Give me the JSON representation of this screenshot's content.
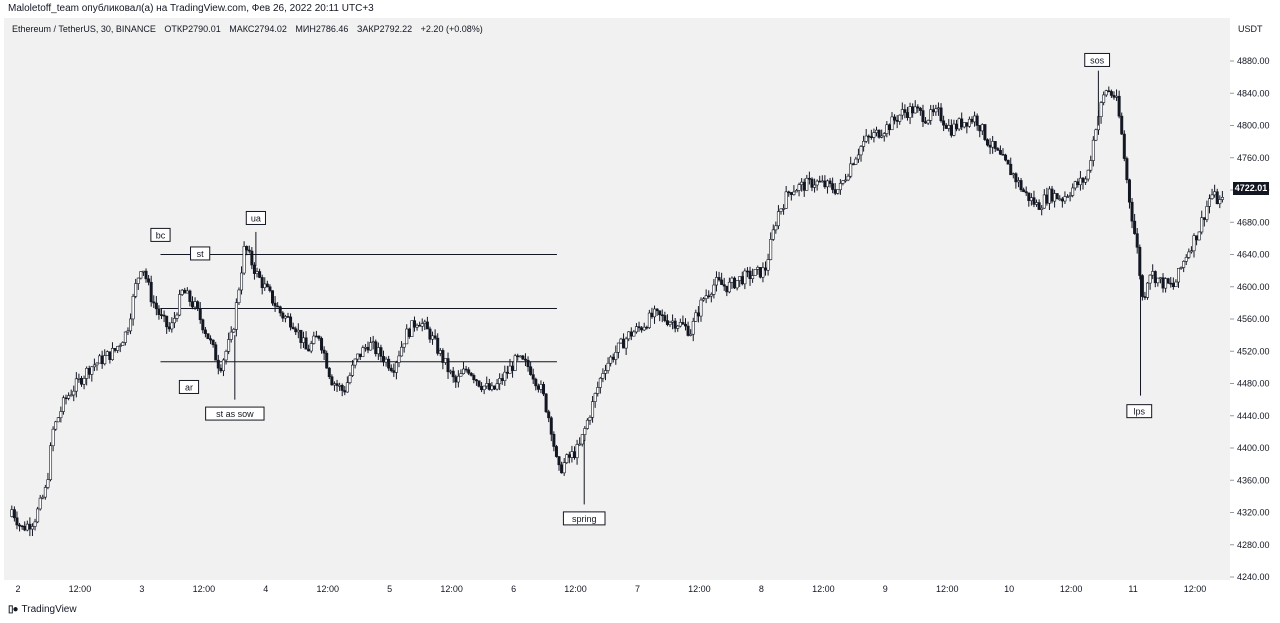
{
  "header": {
    "publisher_line": "Maloletoff_team опубликовал(а) на TradingView.com, Фев 26, 2022 20:11 UTC+3"
  },
  "symbol": {
    "title": "Ethereum / TetherUS, 30, BINANCE",
    "open": "ОТКР2790.01",
    "high": "МАКС2794.02",
    "low": "МИН2786.46",
    "close": "ЗАКР2792.22",
    "change": "+2.20 (+0.08%)"
  },
  "price_axis": {
    "currency": "USDT",
    "last_price_label": "4722.01"
  },
  "footer": {
    "brand": "TradingView",
    "logo_icon": "tradingview-logo-icon"
  },
  "colors": {
    "candle": "#131722",
    "background": "#f1f1f1",
    "line": "#131722"
  },
  "chart_data": {
    "type": "candlestick",
    "title": "Ethereum / TetherUS, 30, BINANCE",
    "ylim": [
      4240,
      4900
    ],
    "yticks": [
      4240,
      4280,
      4320,
      4360,
      4400,
      4440,
      4480,
      4520,
      4560,
      4600,
      4640,
      4680,
      4720,
      4760,
      4800,
      4840,
      4880
    ],
    "ytick_labels": [
      "4240.00",
      "4280.00",
      "4320.00",
      "4360.00",
      "4400.00",
      "4440.00",
      "4480.00",
      "4520.00",
      "4560.00",
      "4600.00",
      "4640.00",
      "4680.00",
      "4720.00",
      "4760.00",
      "4800.00",
      "4840.00",
      "4880.00"
    ],
    "xlim": [
      2.0,
      11.75
    ],
    "xticks": [
      {
        "x": 2.0,
        "label": "2"
      },
      {
        "x": 2.5,
        "label": "12:00"
      },
      {
        "x": 3.0,
        "label": "3"
      },
      {
        "x": 3.5,
        "label": "12:00"
      },
      {
        "x": 4.0,
        "label": "4"
      },
      {
        "x": 4.5,
        "label": "12:00"
      },
      {
        "x": 5.0,
        "label": "5"
      },
      {
        "x": 5.5,
        "label": "12:00"
      },
      {
        "x": 6.0,
        "label": "6"
      },
      {
        "x": 6.5,
        "label": "12:00"
      },
      {
        "x": 7.0,
        "label": "7"
      },
      {
        "x": 7.5,
        "label": "12:00"
      },
      {
        "x": 8.0,
        "label": "8"
      },
      {
        "x": 8.5,
        "label": "12:00"
      },
      {
        "x": 9.0,
        "label": "9"
      },
      {
        "x": 9.5,
        "label": "12:00"
      },
      {
        "x": 10.0,
        "label": "10"
      },
      {
        "x": 10.5,
        "label": "12:00"
      },
      {
        "x": 11.0,
        "label": "11"
      },
      {
        "x": 11.5,
        "label": "12:00"
      }
    ],
    "price_path": [
      [
        1.95,
        4330
      ],
      [
        2.05,
        4300
      ],
      [
        2.15,
        4310
      ],
      [
        2.25,
        4350
      ],
      [
        2.3,
        4420
      ],
      [
        2.4,
        4460
      ],
      [
        2.5,
        4480
      ],
      [
        2.6,
        4500
      ],
      [
        2.7,
        4510
      ],
      [
        2.8,
        4520
      ],
      [
        2.9,
        4545
      ],
      [
        2.97,
        4600
      ],
      [
        3.02,
        4630
      ],
      [
        3.1,
        4585
      ],
      [
        3.18,
        4560
      ],
      [
        3.25,
        4545
      ],
      [
        3.35,
        4595
      ],
      [
        3.45,
        4575
      ],
      [
        3.55,
        4540
      ],
      [
        3.65,
        4500
      ],
      [
        3.75,
        4540
      ],
      [
        3.85,
        4650
      ],
      [
        3.95,
        4615
      ],
      [
        4.05,
        4590
      ],
      [
        4.15,
        4565
      ],
      [
        4.25,
        4555
      ],
      [
        4.35,
        4520
      ],
      [
        4.45,
        4540
      ],
      [
        4.55,
        4485
      ],
      [
        4.65,
        4470
      ],
      [
        4.75,
        4510
      ],
      [
        4.85,
        4530
      ],
      [
        4.95,
        4515
      ],
      [
        5.05,
        4500
      ],
      [
        5.15,
        4540
      ],
      [
        5.25,
        4560
      ],
      [
        5.35,
        4540
      ],
      [
        5.45,
        4510
      ],
      [
        5.55,
        4480
      ],
      [
        5.65,
        4500
      ],
      [
        5.75,
        4480
      ],
      [
        5.85,
        4470
      ],
      [
        5.95,
        4490
      ],
      [
        6.05,
        4510
      ],
      [
        6.15,
        4500
      ],
      [
        6.25,
        4470
      ],
      [
        6.32,
        4430
      ],
      [
        6.38,
        4370
      ],
      [
        6.45,
        4385
      ],
      [
        6.55,
        4400
      ],
      [
        6.65,
        4450
      ],
      [
        6.75,
        4500
      ],
      [
        6.85,
        4520
      ],
      [
        6.95,
        4540
      ],
      [
        7.05,
        4550
      ],
      [
        7.15,
        4565
      ],
      [
        7.25,
        4560
      ],
      [
        7.35,
        4555
      ],
      [
        7.45,
        4545
      ],
      [
        7.55,
        4585
      ],
      [
        7.65,
        4605
      ],
      [
        7.75,
        4600
      ],
      [
        7.85,
        4610
      ],
      [
        7.95,
        4615
      ],
      [
        8.05,
        4620
      ],
      [
        8.15,
        4690
      ],
      [
        8.25,
        4720
      ],
      [
        8.35,
        4725
      ],
      [
        8.45,
        4730
      ],
      [
        8.55,
        4725
      ],
      [
        8.65,
        4720
      ],
      [
        8.75,
        4755
      ],
      [
        8.85,
        4780
      ],
      [
        8.95,
        4790
      ],
      [
        9.05,
        4800
      ],
      [
        9.15,
        4815
      ],
      [
        9.25,
        4820
      ],
      [
        9.35,
        4810
      ],
      [
        9.45,
        4815
      ],
      [
        9.55,
        4795
      ],
      [
        9.65,
        4805
      ],
      [
        9.75,
        4810
      ],
      [
        9.85,
        4780
      ],
      [
        9.95,
        4760
      ],
      [
        10.05,
        4740
      ],
      [
        10.15,
        4715
      ],
      [
        10.25,
        4700
      ],
      [
        10.35,
        4715
      ],
      [
        10.45,
        4710
      ],
      [
        10.55,
        4725
      ],
      [
        10.65,
        4735
      ],
      [
        10.72,
        4800
      ],
      [
        10.8,
        4845
      ],
      [
        10.88,
        4835
      ],
      [
        10.92,
        4800
      ],
      [
        10.98,
        4720
      ],
      [
        11.02,
        4680
      ],
      [
        11.06,
        4640
      ],
      [
        11.1,
        4580
      ],
      [
        11.15,
        4620
      ],
      [
        11.25,
        4605
      ],
      [
        11.35,
        4600
      ],
      [
        11.45,
        4640
      ],
      [
        11.55,
        4670
      ],
      [
        11.65,
        4715
      ],
      [
        11.72,
        4705
      ]
    ],
    "annotations": [
      {
        "label": "bc",
        "x": 3.15,
        "y": 4655,
        "pos": "above"
      },
      {
        "label": "st",
        "x": 3.47,
        "y": 4632,
        "pos": "above"
      },
      {
        "label": "ua",
        "x": 3.92,
        "y": 4676,
        "pos": "above"
      },
      {
        "label": "ar",
        "x": 3.38,
        "y": 4485,
        "pos": "below"
      },
      {
        "label": "st as sow",
        "x": 3.75,
        "y": 4452,
        "pos": "below"
      },
      {
        "label": "spring",
        "x": 6.57,
        "y": 4322,
        "pos": "below"
      },
      {
        "label": "sos",
        "x": 10.71,
        "y": 4872,
        "pos": "above"
      },
      {
        "label": "lps",
        "x": 11.05,
        "y": 4455,
        "pos": "below"
      }
    ],
    "horizontal_lines": [
      {
        "y": 4640,
        "x_start": 3.15,
        "x_end": 6.35
      },
      {
        "y": 4573,
        "x_start": 3.15,
        "x_end": 6.35
      },
      {
        "y": 4507,
        "x_start": 3.15,
        "x_end": 6.35
      }
    ],
    "grid": false
  }
}
